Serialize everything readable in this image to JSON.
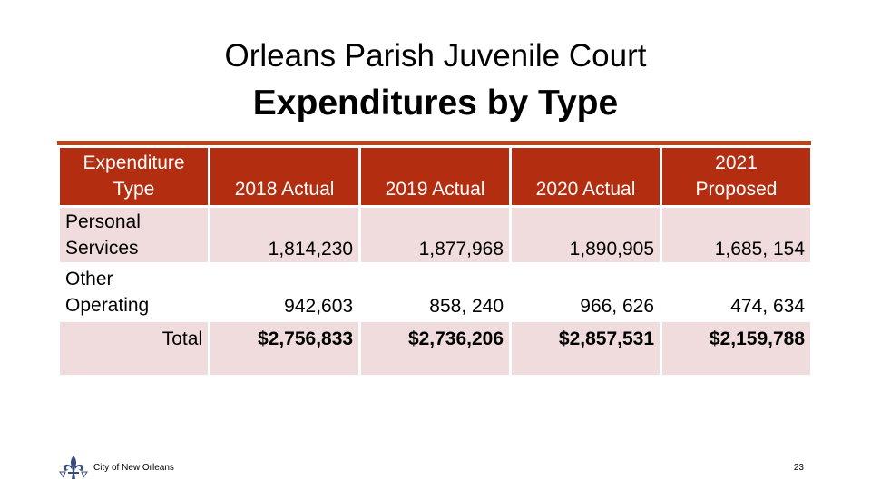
{
  "title": {
    "line1": "Orleans Parish Juvenile Court",
    "line2": "Expenditures by Type"
  },
  "table": {
    "headers": [
      "Expenditure Type",
      "2018 Actual",
      "2019 Actual",
      "2020 Actual",
      "2021 Proposed"
    ],
    "header_lines": {
      "col0_a": "Expenditure",
      "col0_b": "Type",
      "col4_a": "2021",
      "col4_b": "Proposed"
    },
    "rows": [
      {
        "label_a": "Personal",
        "label_b": "Services",
        "values": [
          "1,814,230",
          "1,877,968",
          "1,890,905",
          "1,685, 154"
        ]
      },
      {
        "label_a": "Other",
        "label_b": "Operating",
        "values": [
          "942,603",
          "858, 240",
          "966, 626",
          "474, 634"
        ]
      }
    ],
    "total": {
      "label": "Total",
      "values": [
        "$2,756,833",
        "$2,736,206",
        "$2,857,531",
        "$2,159,788"
      ]
    }
  },
  "colors": {
    "header_bg": "#b32d10",
    "rule": "#b9461e",
    "row_shade": "#f0dcdc"
  },
  "footer": {
    "logo_icon": "fleur-de-lis-icon",
    "org": "City of New Orleans",
    "page_number": "23"
  }
}
